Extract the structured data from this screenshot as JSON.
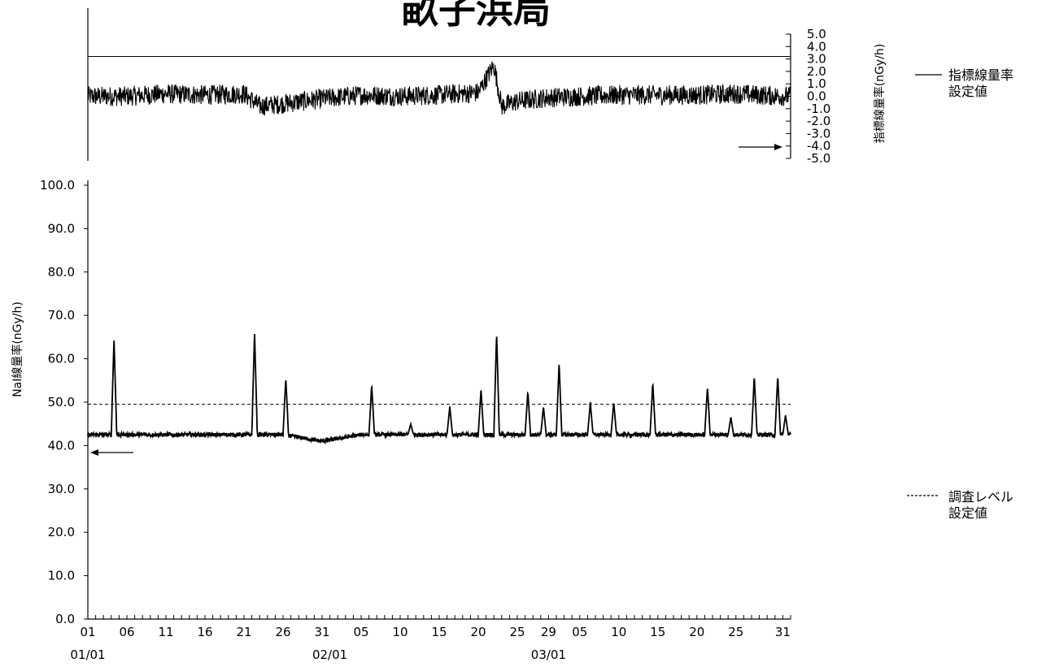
{
  "chart_data": [
    {
      "type": "line",
      "title": "畝子浜局",
      "ylabel": "指標線量率(nGy/h)",
      "ylim": [
        -5.0,
        5.0
      ],
      "yticks": [
        "5.0",
        "4.0",
        "3.0",
        "2.0",
        "1.0",
        "0.0",
        "-1.0",
        "-2.0",
        "-3.0",
        "-4.0",
        "-5.0"
      ],
      "x_dates": [
        "01/01",
        "01/06",
        "01/11",
        "01/16",
        "01/21",
        "01/26",
        "01/31",
        "02/05",
        "02/10",
        "02/15",
        "02/20",
        "02/25",
        "03/01",
        "03/05",
        "03/10",
        "03/15",
        "03/20",
        "03/25",
        "03/31"
      ],
      "series": [
        {
          "name": "指標線量率",
          "x": [
            "01/01",
            "01/06",
            "01/11",
            "01/16",
            "01/21",
            "01/23",
            "01/26",
            "01/31",
            "02/05",
            "02/10",
            "02/15",
            "02/20",
            "02/22",
            "02/23",
            "02/25",
            "03/01",
            "03/05",
            "03/10",
            "03/15",
            "03/20",
            "03/25",
            "03/31"
          ],
          "y": [
            0.0,
            0.0,
            0.2,
            0.1,
            0.2,
            -0.8,
            -0.6,
            -0.2,
            0.1,
            0.0,
            0.1,
            0.3,
            2.5,
            -0.8,
            -0.4,
            -0.1,
            0.0,
            0.1,
            0.1,
            0.1,
            0.2,
            0.0
          ]
        },
        {
          "name": "設定値",
          "y": 3.2
        }
      ],
      "legend": [
        {
          "style": "solid",
          "label_line1": "指標線量率",
          "label_line2": "設定値"
        }
      ]
    },
    {
      "type": "line",
      "ylabel": "NaI線量率(nGy/h)",
      "ylim": [
        0.0,
        100.0
      ],
      "yticks": [
        "100.0",
        "90.0",
        "80.0",
        "70.0",
        "60.0",
        "50.0",
        "40.0",
        "30.0",
        "20.0",
        "10.0",
        "0.0"
      ],
      "x_tick_labels": [
        "01",
        "06",
        "11",
        "16",
        "21",
        "26",
        "31",
        "05",
        "10",
        "15",
        "20",
        "25",
        "29",
        "05",
        "10",
        "15",
        "20",
        "25",
        "31"
      ],
      "x_month_labels": [
        "01/01",
        "02/01",
        "03/01"
      ],
      "series": [
        {
          "name": "NaI線量率",
          "baseline": 42.5,
          "peaks": [
            {
              "x": "01/04",
              "y": 64.5
            },
            {
              "x": "01/22",
              "y": 66.0
            },
            {
              "x": "01/26",
              "y": 55.5
            },
            {
              "x": "02/06",
              "y": 54.0
            },
            {
              "x": "02/11",
              "y": 45.0
            },
            {
              "x": "02/16",
              "y": 49.0
            },
            {
              "x": "02/20",
              "y": 53.0
            },
            {
              "x": "02/22",
              "y": 66.0
            },
            {
              "x": "02/26",
              "y": 52.5
            },
            {
              "x": "02/28",
              "y": 49.0
            },
            {
              "x": "03/02",
              "y": 59.0
            },
            {
              "x": "03/06",
              "y": 50.0
            },
            {
              "x": "03/09",
              "y": 50.0
            },
            {
              "x": "03/14",
              "y": 54.5
            },
            {
              "x": "03/21",
              "y": 53.5
            },
            {
              "x": "03/24",
              "y": 46.5
            },
            {
              "x": "03/27",
              "y": 56.0
            },
            {
              "x": "03/30",
              "y": 56.0
            },
            {
              "x": "03/31",
              "y": 47.0
            }
          ]
        },
        {
          "name": "調査レベル設定値",
          "y": 49.5
        }
      ],
      "legend": [
        {
          "style": "dashed",
          "label_line1": "調査レベル",
          "label_line2": "設定値"
        }
      ]
    }
  ]
}
